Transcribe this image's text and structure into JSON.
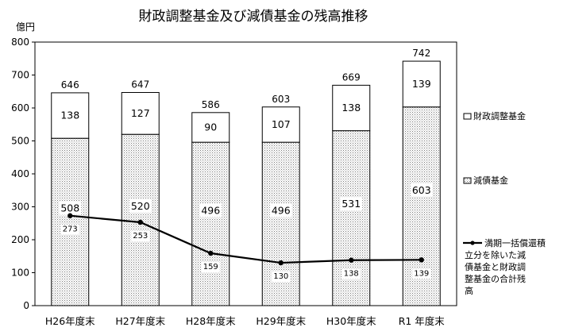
{
  "chart_data": {
    "type": "bar",
    "title": "財政調整基金及び減債基金の残高推移",
    "unit": "億円",
    "ylim": [
      0,
      800
    ],
    "yticks": [
      0,
      100,
      200,
      300,
      400,
      500,
      600,
      700,
      800
    ],
    "grid": false,
    "legend_position": "right",
    "categories": [
      "H26年度末",
      "H27年度末",
      "H28年度末",
      "H29年度末",
      "H30年度末",
      "R1 年度末"
    ],
    "totals": [
      646,
      647,
      586,
      603,
      669,
      742
    ],
    "series": [
      {
        "name": "減債基金",
        "kind": "bar",
        "values": [
          508,
          520,
          496,
          496,
          531,
          603
        ]
      },
      {
        "name": "財政調整基金",
        "kind": "bar",
        "values": [
          138,
          127,
          90,
          107,
          138,
          139
        ]
      },
      {
        "name": "満期一括償還積立分を除いた減債基金と財政調整基金の合計残高",
        "kind": "line",
        "values": [
          273,
          253,
          159,
          130,
          138,
          139
        ]
      }
    ],
    "legend_lines": [
      [
        "満期一括償還積",
        "立分を除いた減",
        "債基金と財政調",
        "整基金の合計残",
        "高"
      ]
    ]
  }
}
